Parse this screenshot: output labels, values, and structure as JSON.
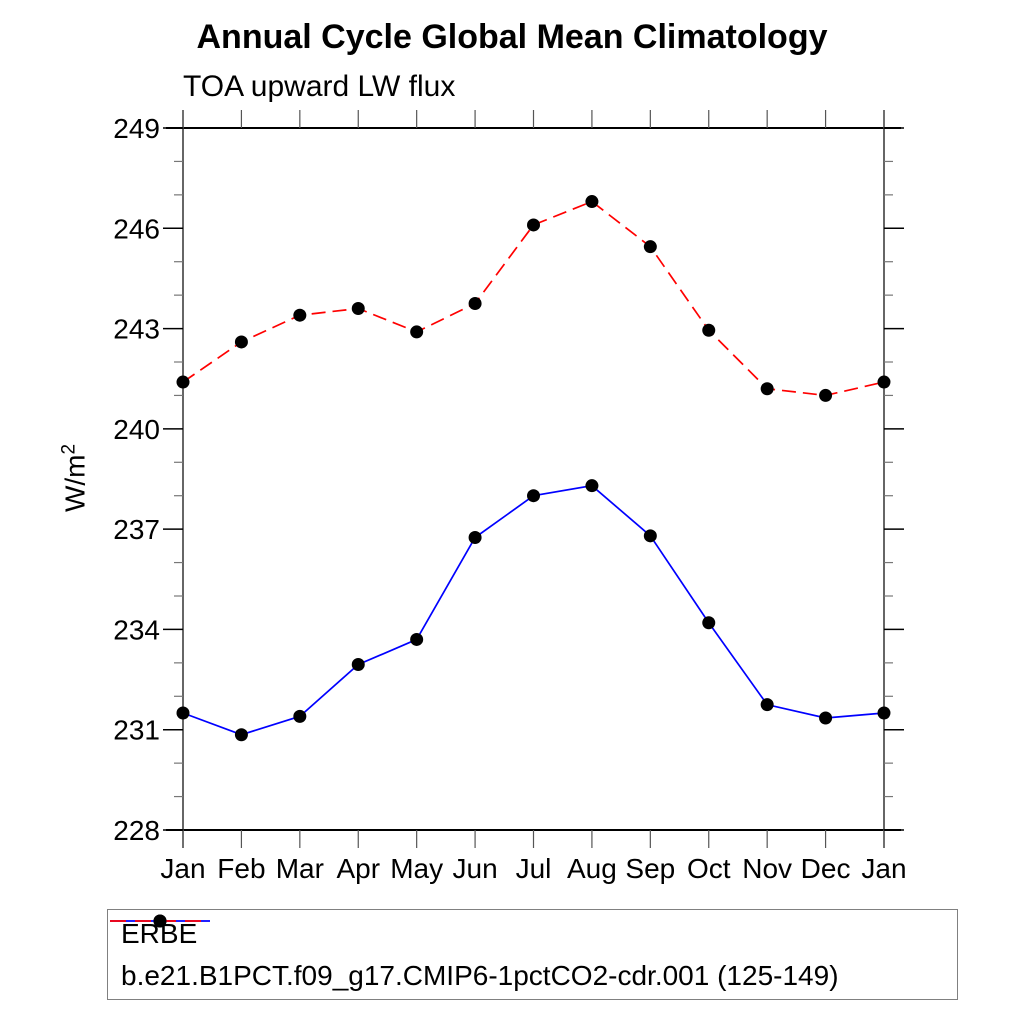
{
  "page": {
    "title": "Annual Cycle Global Mean Climatology",
    "subtitle": "TOA upward LW flux",
    "ylabel_base": "W/m",
    "ylabel_exp": "2"
  },
  "legend": {
    "position": "bottom",
    "entries": [
      {
        "label": "ERBE",
        "line_color": "#0000ff",
        "line_style": "solid",
        "marker": "filled-circle",
        "marker_color": "#000000"
      },
      {
        "label": "b.e21.B1PCT.f09_g17.CMIP6-1pctCO2-cdr.001 (125-149)",
        "line_color": "#ff0000",
        "line_style": "dashed",
        "marker": "filled-circle",
        "marker_color": "#000000"
      }
    ]
  },
  "chart_data": {
    "type": "line",
    "title": "Annual Cycle Global Mean Climatology",
    "subtitle": "TOA upward LW flux",
    "xlabel": "",
    "ylabel": "W/m^2",
    "x_labels": [
      "Jan",
      "Feb",
      "Mar",
      "Apr",
      "May",
      "Jun",
      "Jul",
      "Aug",
      "Sep",
      "Oct",
      "Nov",
      "Dec",
      "Jan"
    ],
    "ylim": [
      228,
      249
    ],
    "ytick_major": [
      228,
      231,
      234,
      237,
      240,
      243,
      246,
      249
    ],
    "ytick_minor_step": 1,
    "grid": false,
    "legend_position": "bottom",
    "series": [
      {
        "name": "ERBE",
        "color": "#0000ff",
        "line_style": "solid",
        "marker": "filled-circle",
        "marker_color": "#000000",
        "values": [
          231.5,
          230.85,
          231.4,
          232.95,
          233.7,
          236.75,
          238.0,
          238.3,
          236.8,
          234.2,
          231.75,
          231.35,
          231.5
        ]
      },
      {
        "name": "b.e21.B1PCT.f09_g17.CMIP6-1pctCO2-cdr.001 (125-149)",
        "color": "#ff0000",
        "line_style": "dashed",
        "marker": "filled-circle",
        "marker_color": "#000000",
        "values": [
          241.4,
          242.6,
          243.4,
          243.6,
          242.9,
          243.75,
          246.1,
          246.8,
          245.45,
          242.95,
          241.2,
          241.0,
          241.4
        ]
      }
    ]
  }
}
